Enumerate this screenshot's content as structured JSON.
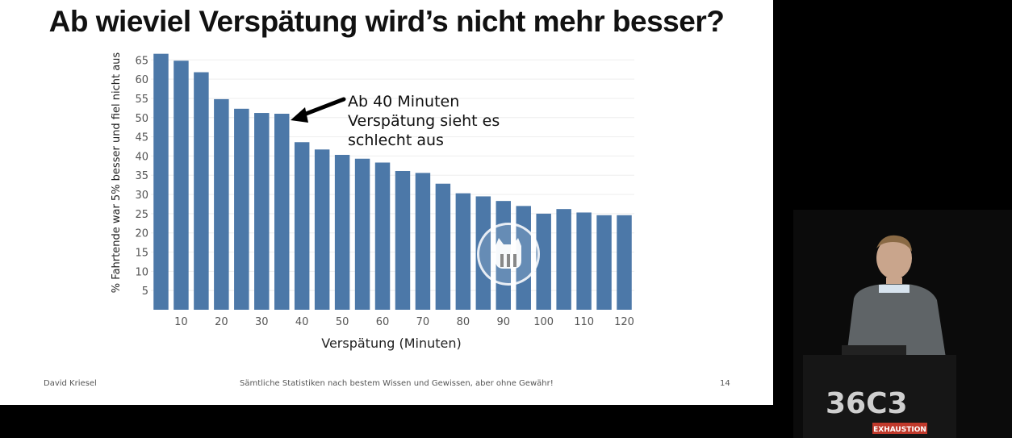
{
  "slide": {
    "title": "Ab wieviel Verspätung wird’s nicht mehr besser?",
    "annotation": [
      "Ab 40 Minuten",
      "Verspätung sieht es",
      "schlecht aus"
    ],
    "footer_left": "David Kriesel",
    "footer_center": "Sämtliche Statistiken nach bestem Wissen und Gewissen, aber ohne Gewähr!",
    "footer_right": "14"
  },
  "video": {
    "play_icon": "cat-play-icon",
    "stage_logo": "36C3 logo",
    "stage_logo_text": "EXHAUSTION"
  },
  "colors": {
    "bar": "#4c78a8",
    "background": "#ffffff",
    "stage": "#000000"
  },
  "chart_data": {
    "type": "bar",
    "xlabel": "Verspätung (Minuten)",
    "ylabel": "% Fahrtende war 5% besser und fiel nicht aus",
    "x": [
      5,
      10,
      15,
      20,
      25,
      30,
      35,
      40,
      45,
      50,
      55,
      60,
      65,
      70,
      75,
      80,
      85,
      90,
      95,
      100,
      105,
      110,
      115,
      120
    ],
    "values": [
      66.6,
      64.8,
      61.8,
      54.8,
      52.3,
      51.2,
      51.0,
      43.6,
      41.7,
      40.3,
      39.3,
      38.3,
      36.1,
      35.6,
      32.8,
      30.3,
      29.5,
      28.3,
      27.0,
      25.0,
      26.2,
      25.3,
      24.6,
      24.6
    ],
    "xticks": [
      10,
      20,
      30,
      40,
      50,
      60,
      70,
      80,
      90,
      100,
      110,
      120
    ],
    "yticks": [
      5,
      10,
      15,
      20,
      25,
      30,
      35,
      40,
      45,
      50,
      55,
      60,
      65
    ],
    "ylim": [
      0,
      68
    ],
    "grid": true,
    "legend": "none"
  }
}
